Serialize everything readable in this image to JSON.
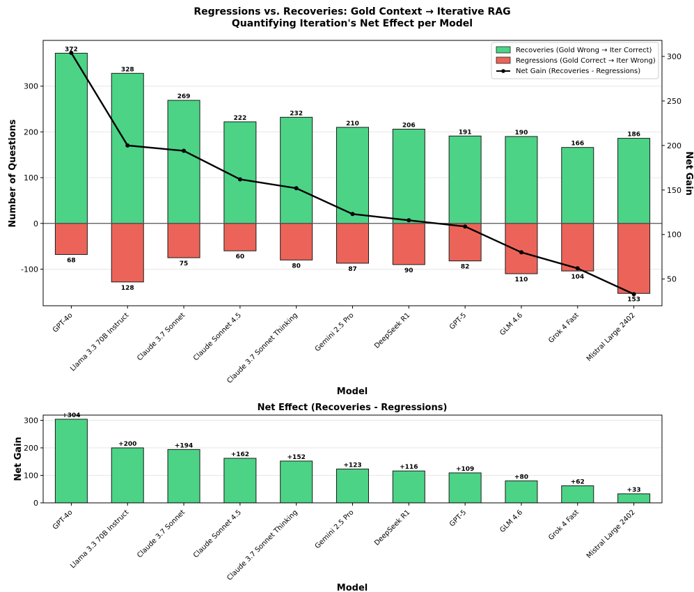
{
  "chart_data": [
    {
      "type": "bar",
      "title": "Regressions vs. Recoveries: Gold Context → Iterative RAG",
      "subtitle": "Quantifying Iteration's Net Effect per Model",
      "xlabel": "Model",
      "ylabel": "Number of Questions",
      "y2label": "Net Gain",
      "ylim": [
        -180,
        400
      ],
      "y2lim": [
        20,
        318
      ],
      "yticks": [
        -100,
        0,
        100,
        200,
        300
      ],
      "y2ticks": [
        50,
        100,
        150,
        200,
        250,
        300
      ],
      "grid": "horizontal",
      "legend_position": "top-right",
      "categories": [
        "GPT-4o",
        "Llama 3.3 70B Instruct",
        "Claude 3.7 Sonnet",
        "Claude Sonnet 4.5",
        "Claude 3.7 Sonnet Thinking",
        "Gemini 2.5 Pro",
        "DeepSeek R1",
        "GPT-5",
        "GLM 4.6",
        "Grok 4 Fast",
        "Mistral Large 2402"
      ],
      "series": [
        {
          "name": "Recoveries (Gold Wrong → Iter Correct)",
          "color": "#4cd386",
          "values": [
            372,
            328,
            269,
            222,
            232,
            210,
            206,
            191,
            190,
            166,
            186
          ],
          "labels": [
            "372",
            "328",
            "269",
            "222",
            "232",
            "210",
            "206",
            "191",
            "190",
            "166",
            "186"
          ]
        },
        {
          "name": "Regressions (Gold Correct → Iter Wrong)",
          "color": "#ec6459",
          "values": [
            -68,
            -128,
            -75,
            -60,
            -80,
            -87,
            -90,
            -82,
            -110,
            -104,
            -153
          ],
          "labels": [
            "68",
            "128",
            "75",
            "60",
            "80",
            "87",
            "90",
            "82",
            "110",
            "104",
            "153"
          ]
        },
        {
          "name": "Net Gain (Recoveries - Regressions)",
          "type": "line",
          "axis": "right",
          "color": "#000000",
          "values": [
            304,
            200,
            194,
            162,
            152,
            123,
            116,
            109,
            80,
            62,
            33
          ]
        }
      ]
    },
    {
      "type": "bar",
      "title": "Net Effect (Recoveries - Regressions)",
      "xlabel": "Model",
      "ylabel": "Net Gain",
      "ylim": [
        0,
        319
      ],
      "yticks": [
        0,
        100,
        200,
        300
      ],
      "grid": "horizontal",
      "categories": [
        "GPT-4o",
        "Llama 3.3 70B Instruct",
        "Claude 3.7 Sonnet",
        "Claude Sonnet 4.5",
        "Claude 3.7 Sonnet Thinking",
        "Gemini 2.5 Pro",
        "DeepSeek R1",
        "GPT-5",
        "GLM 4.6",
        "Grok 4 Fast",
        "Mistral Large 2402"
      ],
      "values": [
        304,
        200,
        194,
        162,
        152,
        123,
        116,
        109,
        80,
        62,
        33
      ],
      "labels": [
        "+304",
        "+200",
        "+194",
        "+162",
        "+152",
        "+123",
        "+116",
        "+109",
        "+80",
        "+62",
        "+33"
      ],
      "color": "#4cd386"
    }
  ]
}
